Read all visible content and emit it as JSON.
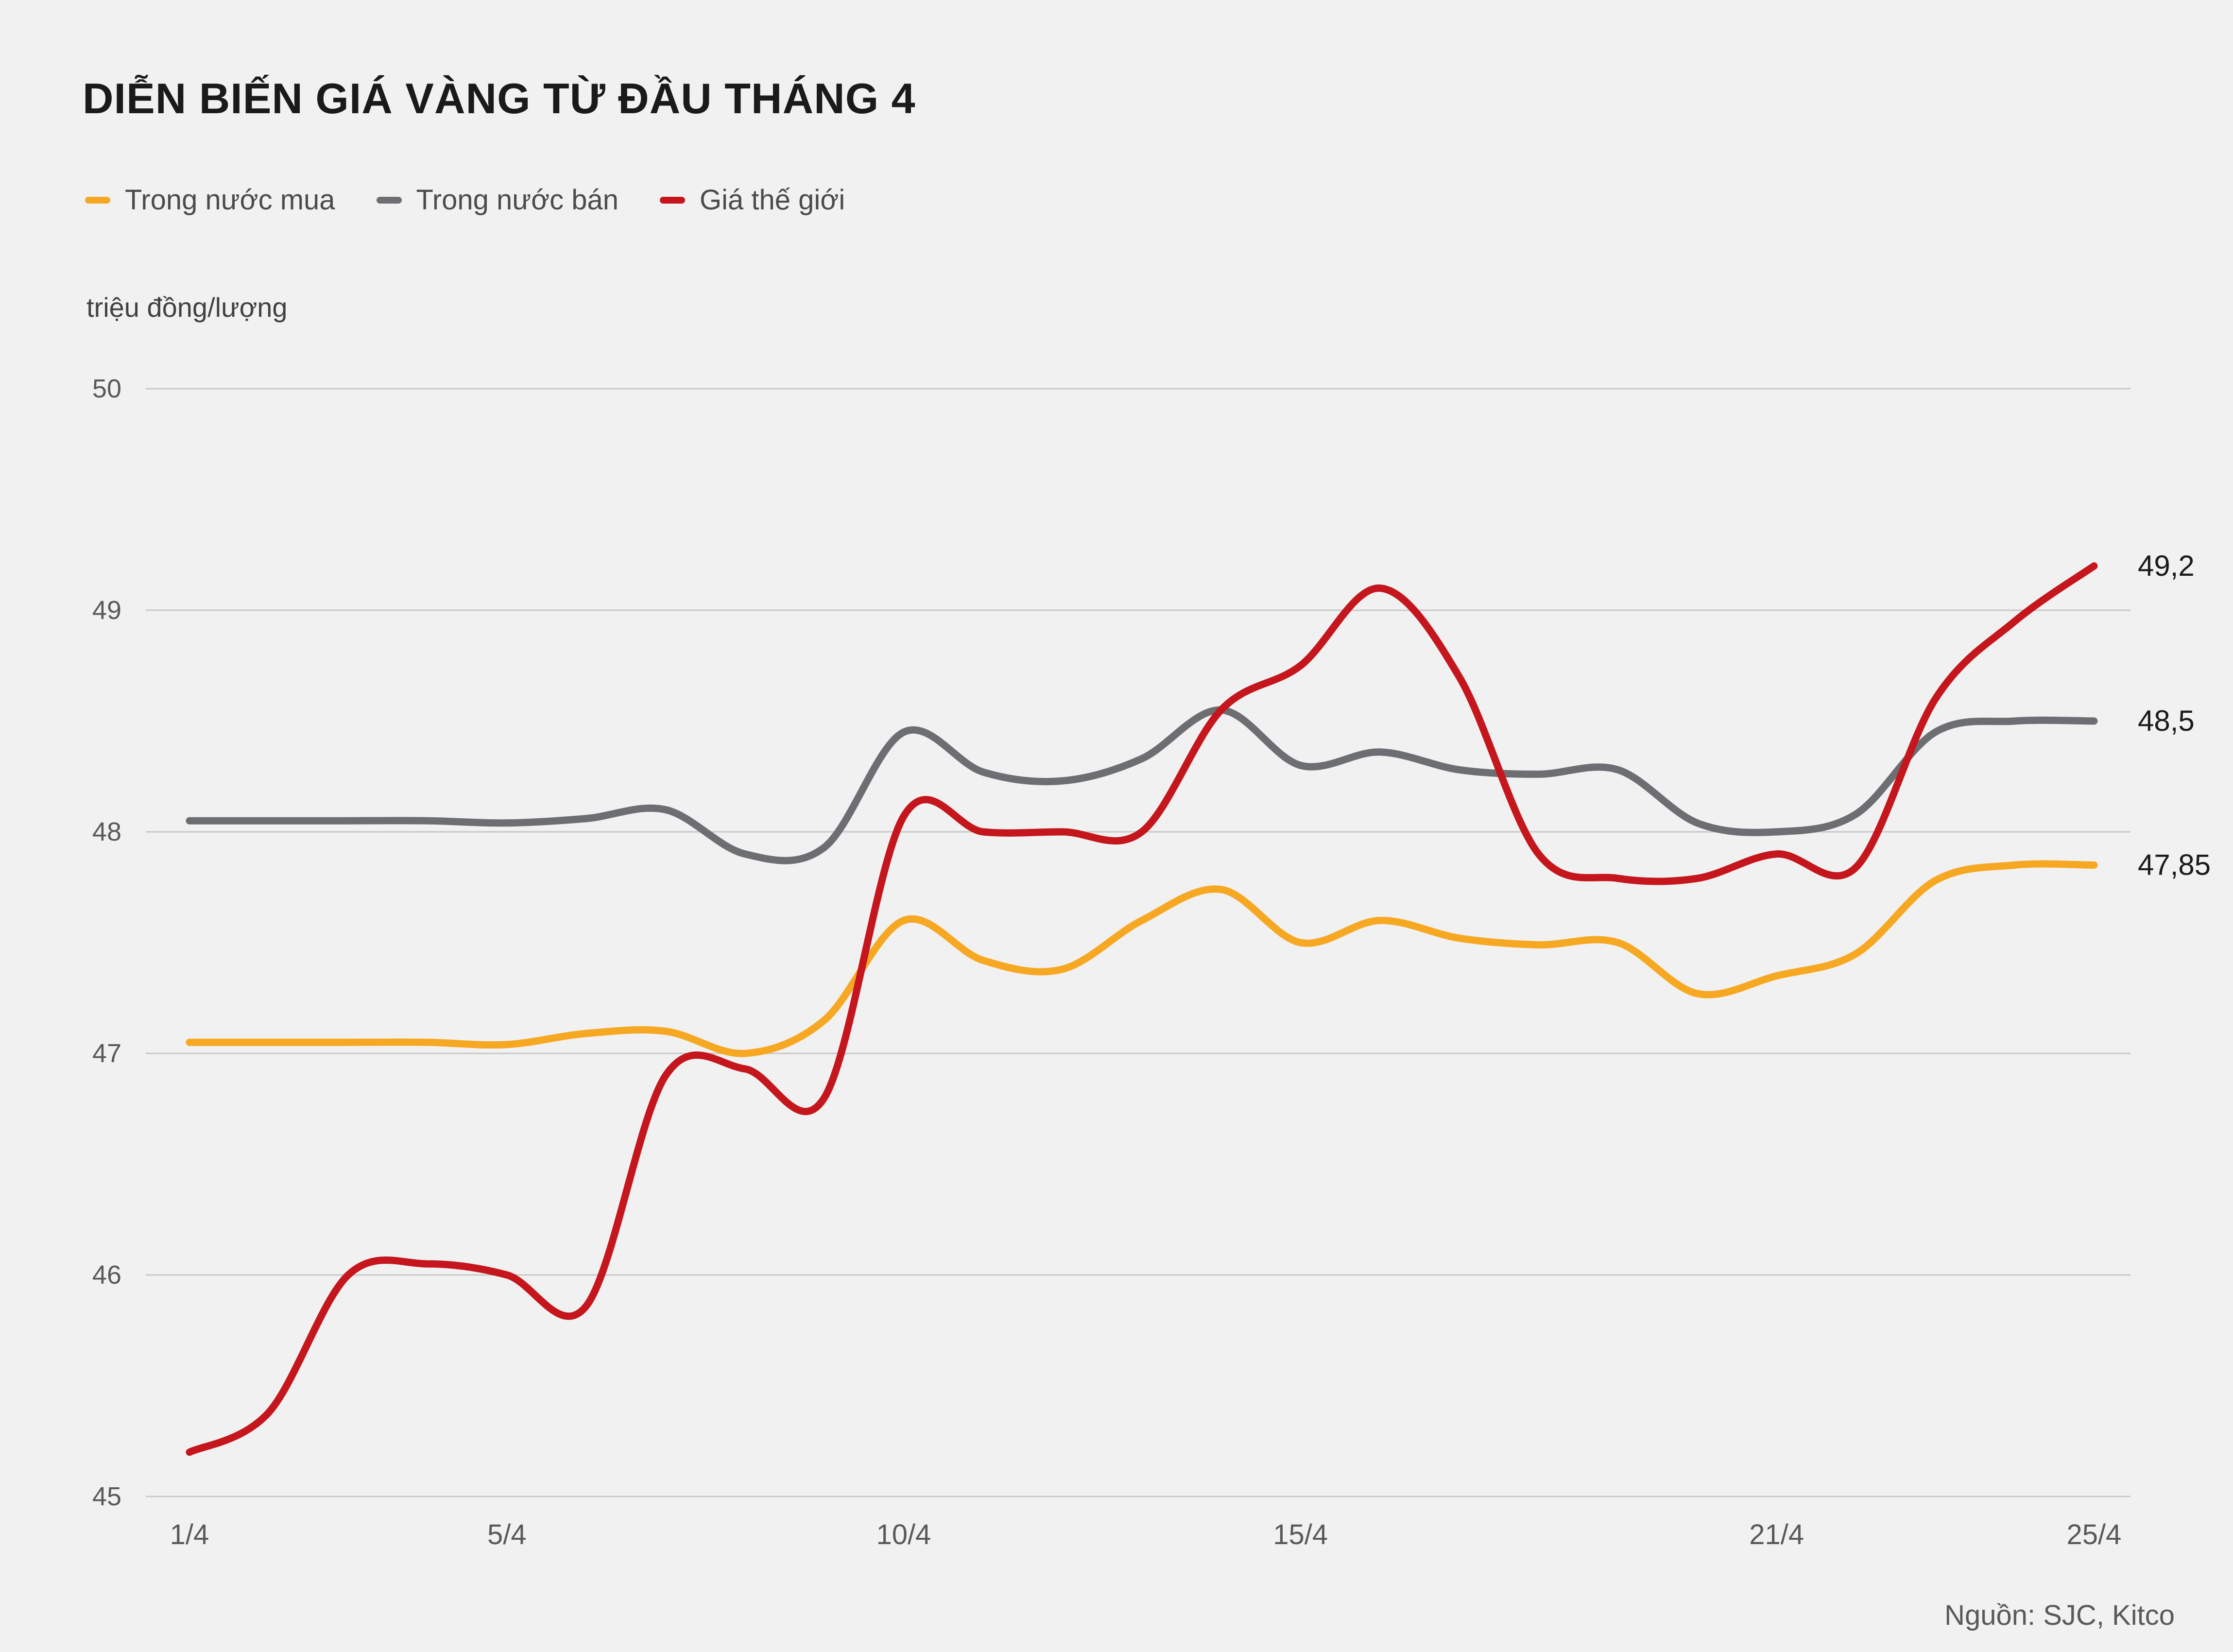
{
  "title": "DIỄN BIẾN GIÁ VÀNG TỪ ĐẦU THÁNG 4",
  "source": "Nguồn: SJC, Kitco",
  "colors": {
    "background": "#f1f1f2",
    "grid": "#c9c9c9",
    "axis_text": "#58595b",
    "end_label_text": "#1a1a1a"
  },
  "chart_data": {
    "type": "line",
    "title": "DIỄN BIẾN GIÁ VÀNG TỪ ĐẦU THÁNG 4",
    "ylabel": "triệu đồng/lượng",
    "xlabel": "",
    "ylim": [
      45,
      50
    ],
    "grid": true,
    "legend_position": "top-left",
    "y_ticks": [
      45,
      46,
      47,
      48,
      49,
      50
    ],
    "x": [
      1,
      2,
      3,
      4,
      5,
      6,
      7,
      8,
      9,
      10,
      11,
      12,
      13,
      14,
      15,
      16,
      17,
      18,
      19,
      20,
      21,
      22,
      23,
      24,
      25
    ],
    "x_ticks": [
      {
        "day": 1,
        "label": "1/4"
      },
      {
        "day": 5,
        "label": "5/4"
      },
      {
        "day": 10,
        "label": "10/4"
      },
      {
        "day": 15,
        "label": "15/4"
      },
      {
        "day": 21,
        "label": "21/4"
      },
      {
        "day": 25,
        "label": "25/4"
      }
    ],
    "series": [
      {
        "key": "buy",
        "name": "Trong nước mua",
        "color": "#f7a823",
        "end_label": "47,85",
        "values": [
          47.05,
          47.05,
          47.05,
          47.05,
          47.04,
          47.09,
          47.1,
          47.0,
          47.15,
          47.6,
          47.42,
          47.38,
          47.6,
          47.74,
          47.5,
          47.6,
          47.52,
          47.49,
          47.5,
          47.27,
          47.35,
          47.45,
          47.78,
          47.85,
          47.85
        ]
      },
      {
        "key": "sell",
        "name": "Trong nước bán",
        "color": "#6d6e71",
        "end_label": "48,5",
        "values": [
          48.05,
          48.05,
          48.05,
          48.05,
          48.04,
          48.06,
          48.1,
          47.9,
          47.93,
          48.45,
          48.27,
          48.23,
          48.33,
          48.55,
          48.3,
          48.36,
          48.28,
          48.26,
          48.28,
          48.04,
          48.0,
          48.08,
          48.45,
          48.5,
          48.5
        ]
      },
      {
        "key": "world",
        "name": "Giá thế giới",
        "color": "#c4161c",
        "end_label": "49,2",
        "values": [
          45.2,
          45.38,
          46.0,
          46.05,
          46.0,
          45.86,
          46.9,
          46.93,
          46.8,
          48.07,
          48.0,
          48.0,
          48.0,
          48.55,
          48.75,
          49.1,
          48.7,
          47.9,
          47.79,
          47.79,
          47.9,
          47.84,
          48.6,
          48.95,
          49.2
        ]
      }
    ]
  }
}
